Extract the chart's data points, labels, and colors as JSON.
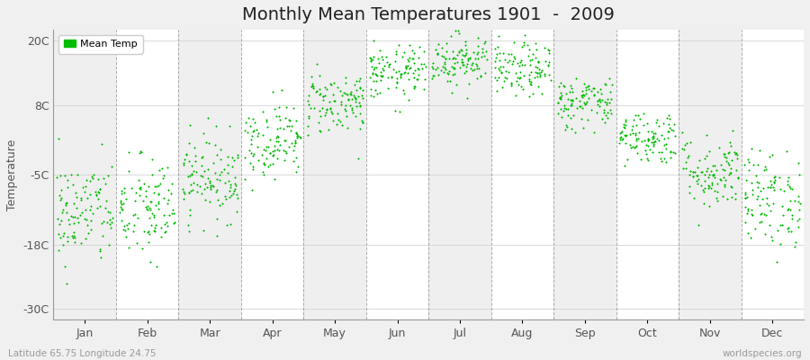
{
  "title": "Monthly Mean Temperatures 1901  -  2009",
  "ylabel": "Temperature",
  "yticks": [
    -30,
    -18,
    -5,
    8,
    20
  ],
  "ytick_labels": [
    "-30C",
    "-18C",
    "-5C",
    "8C",
    "20C"
  ],
  "ylim": [
    -32,
    22
  ],
  "months": [
    "Jan",
    "Feb",
    "Mar",
    "Apr",
    "May",
    "Jun",
    "Jul",
    "Aug",
    "Sep",
    "Oct",
    "Nov",
    "Dec"
  ],
  "monthly_means": [
    -12.0,
    -11.5,
    -5.5,
    1.5,
    8.5,
    14.0,
    16.5,
    14.5,
    8.5,
    2.0,
    -4.5,
    -9.5
  ],
  "monthly_stds": [
    5.0,
    5.0,
    4.0,
    3.5,
    3.0,
    2.5,
    2.5,
    2.5,
    2.5,
    2.5,
    3.5,
    4.5
  ],
  "n_years": 109,
  "dot_color": "#00BB00",
  "dot_size": 4,
  "background_color": "#F0F0F0",
  "plot_bg_color": "#FFFFFF",
  "grid_color": "#888888",
  "title_fontsize": 14,
  "axis_label_fontsize": 9,
  "tick_fontsize": 9,
  "footer_left": "Latitude 65.75 Longitude 24.75",
  "footer_right": "worldspecies.org",
  "legend_label": "Mean Temp",
  "band_colors": [
    "#EFEFEF",
    "#FFFFFF"
  ]
}
